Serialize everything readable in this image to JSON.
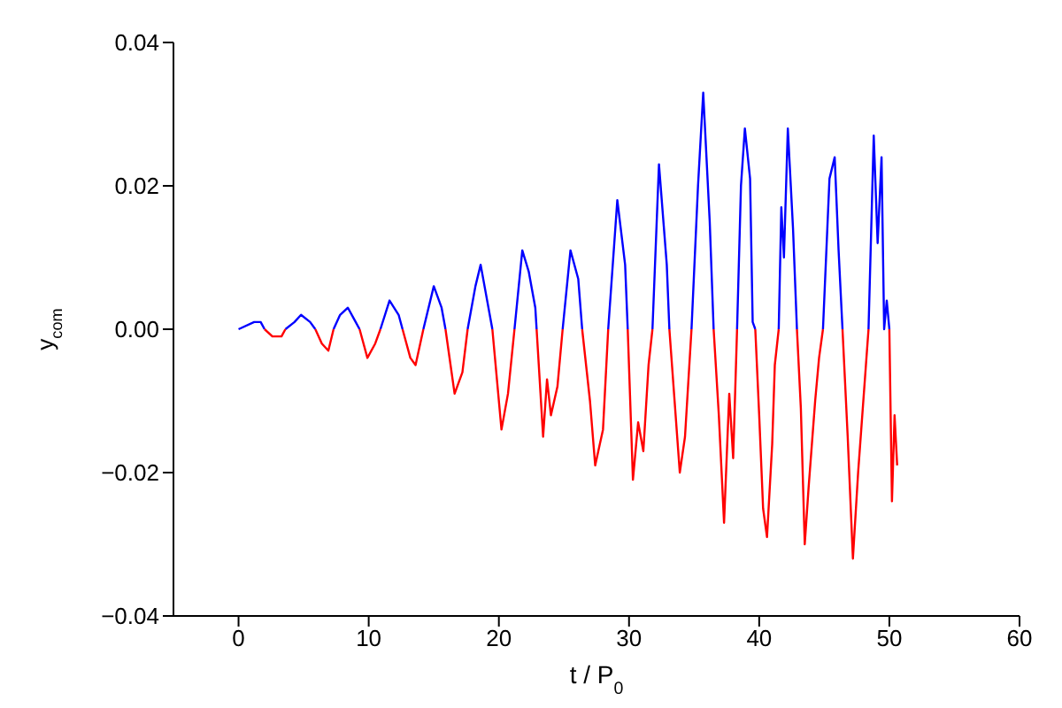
{
  "chart_data": {
    "type": "line",
    "xlabel": "t / P$_{0}$",
    "ylabel": "y$_{com}$",
    "xlim": [
      -5,
      60
    ],
    "xticks": [
      0,
      10,
      20,
      30,
      40,
      50,
      60
    ],
    "ylim": [
      -0.04,
      0.04
    ],
    "yticks": [
      {
        "value": -0.04,
        "label": "−0.04"
      },
      {
        "value": -0.02,
        "label": "−0.02"
      },
      {
        "value": 0,
        "label": "0.00"
      },
      {
        "value": 0.02,
        "label": "0.02"
      },
      {
        "value": 0.04,
        "label": "0.04"
      }
    ],
    "grid": false,
    "marker": "none",
    "line_style": "solid",
    "x": [
      0,
      1.2,
      1.7,
      2.0,
      2.6,
      3.3,
      3.6,
      4.3,
      4.8,
      5.5,
      5.9,
      6.4,
      6.9,
      7.3,
      7.8,
      8.4,
      9.0,
      9.3,
      9.9,
      10.5,
      10.9,
      11.6,
      12.3,
      12.6,
      13.2,
      13.6,
      14.2,
      15.0,
      15.6,
      15.9,
      16.6,
      17.2,
      17.6,
      18.2,
      18.6,
      19.3,
      19.5,
      20.2,
      20.7,
      21.2,
      21.8,
      22.3,
      22.8,
      22.9,
      23.4,
      23.7,
      24.0,
      24.5,
      24.9,
      25.5,
      26.1,
      26.4,
      27.0,
      27.4,
      28.0,
      28.4,
      29.1,
      29.7,
      29.9,
      30.3,
      30.7,
      31.1,
      31.5,
      31.8,
      32.3,
      32.9,
      33.1,
      33.5,
      33.9,
      34.3,
      34.8,
      35.3,
      35.7,
      36.2,
      36.5,
      36.9,
      37.3,
      37.7,
      38.0,
      38.3,
      38.6,
      38.9,
      39.3,
      39.5,
      39.7,
      40.0,
      40.3,
      40.6,
      41.0,
      41.2,
      41.5,
      41.7,
      41.9,
      42.2,
      42.6,
      42.9,
      43.2,
      43.5,
      43.8,
      44.3,
      44.6,
      44.9,
      45.4,
      45.8,
      46.1,
      46.4,
      46.8,
      47.2,
      47.6,
      48.2,
      48.4,
      48.8,
      49.1,
      49.4,
      49.6,
      49.8,
      50.0,
      50.2,
      50.4,
      50.6
    ],
    "series": [
      {
        "color": "#0000ff",
        "values": [
          0,
          0.001,
          0.001,
          0,
          null,
          null,
          0,
          0.001,
          0.002,
          0.001,
          0,
          null,
          null,
          0,
          0.002,
          0.003,
          0.001,
          0,
          null,
          null,
          0,
          0.004,
          0.002,
          0,
          null,
          null,
          0,
          0.006,
          0.003,
          0,
          null,
          null,
          0,
          0.006,
          0.009,
          0.002,
          0,
          null,
          null,
          0,
          0.011,
          0.008,
          0.003,
          0,
          null,
          null,
          null,
          null,
          0,
          0.011,
          0.007,
          0,
          null,
          null,
          null,
          0,
          0.018,
          0.009,
          0,
          null,
          null,
          null,
          null,
          0,
          0.023,
          0.009,
          0,
          null,
          null,
          null,
          0,
          0.02,
          0.033,
          0.015,
          0,
          null,
          null,
          null,
          null,
          0,
          0.02,
          0.028,
          0.021,
          0.001,
          0,
          null,
          null,
          null,
          null,
          null,
          0,
          0.017,
          0.01,
          0.028,
          0.014,
          0,
          null,
          null,
          null,
          null,
          null,
          0,
          0.021,
          0.024,
          0.011,
          0,
          null,
          null,
          null,
          null,
          0,
          0.027,
          0.012,
          0.024,
          0,
          0.004,
          0,
          null,
          null,
          null
        ]
      },
      {
        "color": "#ff0000",
        "values": [
          null,
          null,
          null,
          0,
          -0.001,
          -0.001,
          0,
          null,
          null,
          null,
          0,
          -0.002,
          -0.003,
          0,
          null,
          null,
          null,
          0,
          -0.004,
          -0.002,
          0,
          null,
          null,
          0,
          -0.004,
          -0.005,
          0,
          null,
          null,
          0,
          -0.009,
          -0.006,
          0,
          null,
          null,
          null,
          0,
          -0.014,
          -0.009,
          0,
          null,
          null,
          null,
          0,
          -0.015,
          -0.007,
          -0.012,
          -0.008,
          0,
          null,
          null,
          0,
          -0.01,
          -0.019,
          -0.014,
          0,
          null,
          null,
          0,
          -0.021,
          -0.013,
          -0.017,
          -0.005,
          0,
          null,
          null,
          0,
          -0.01,
          -0.02,
          -0.015,
          0,
          null,
          null,
          null,
          0,
          -0.012,
          -0.027,
          -0.009,
          -0.018,
          0,
          null,
          null,
          null,
          null,
          0,
          -0.012,
          -0.025,
          -0.029,
          -0.016,
          -0.005,
          0,
          null,
          null,
          null,
          null,
          0,
          -0.011,
          -0.03,
          -0.022,
          -0.01,
          -0.004,
          0,
          null,
          null,
          null,
          0,
          -0.015,
          -0.032,
          -0.02,
          -0.005,
          0,
          null,
          null,
          null,
          null,
          null,
          0,
          -0.024,
          -0.012,
          -0.019
        ]
      }
    ]
  }
}
